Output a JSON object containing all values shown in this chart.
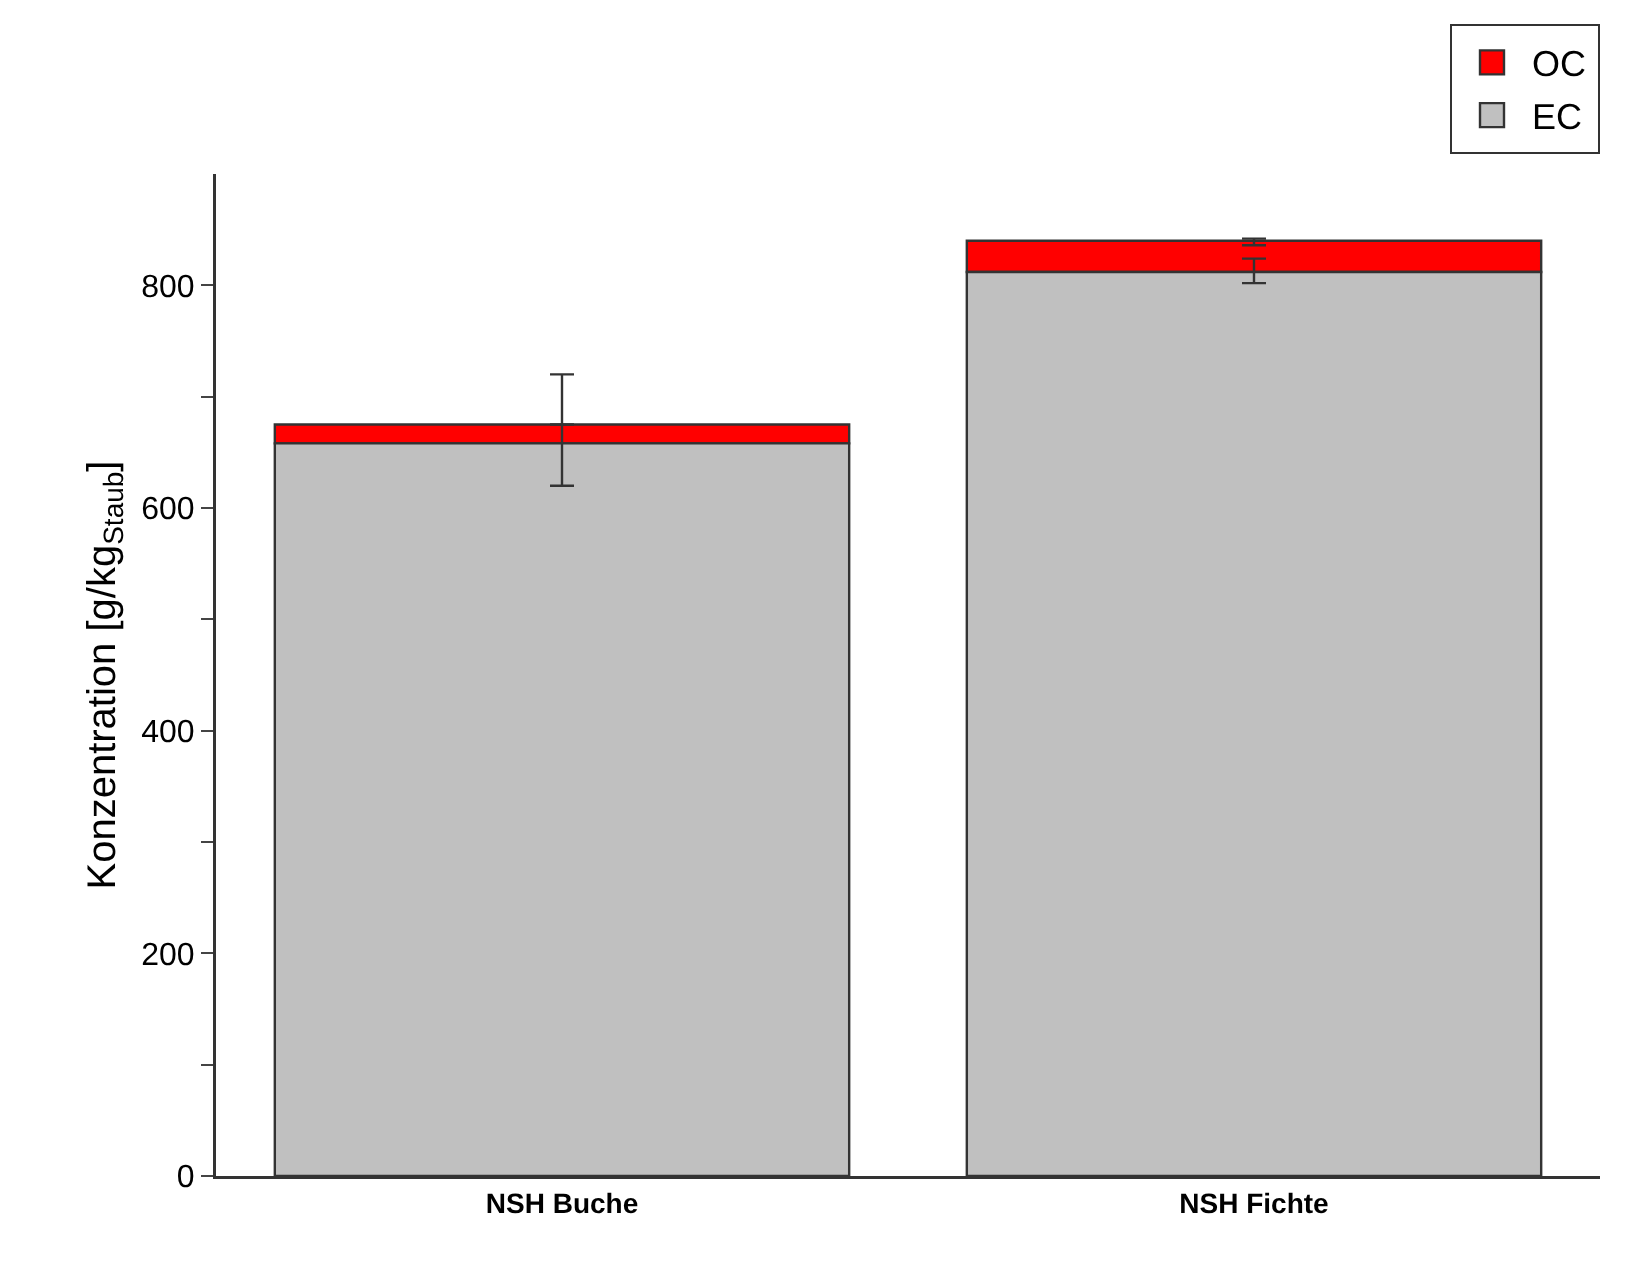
{
  "chart_data": {
    "type": "bar",
    "stacked": true,
    "ylabel": "Konzentration [g/kg$_{Staub}$]",
    "categories": [
      "NSH Buche",
      "NSH Fichte"
    ],
    "series": [
      {
        "name": "EC",
        "color": "#c0c0c0",
        "values": [
          658,
          812
        ],
        "errors": [
          [
            620,
            720
          ],
          [
            802,
            824
          ]
        ]
      },
      {
        "name": "OC",
        "color": "#ff0000",
        "values": [
          17,
          28
        ],
        "errors": [
          null,
          [
            836,
            842
          ]
        ]
      }
    ],
    "ylim": [
      0,
      900
    ],
    "yticks": [
      0,
      {
        "value": 100,
        "label": null
      },
      200,
      {
        "value": 300,
        "label": null
      },
      400,
      {
        "value": 500,
        "label": null
      },
      600,
      {
        "value": 700,
        "label": null
      },
      800
    ],
    "grid": false,
    "legend": "top right"
  }
}
